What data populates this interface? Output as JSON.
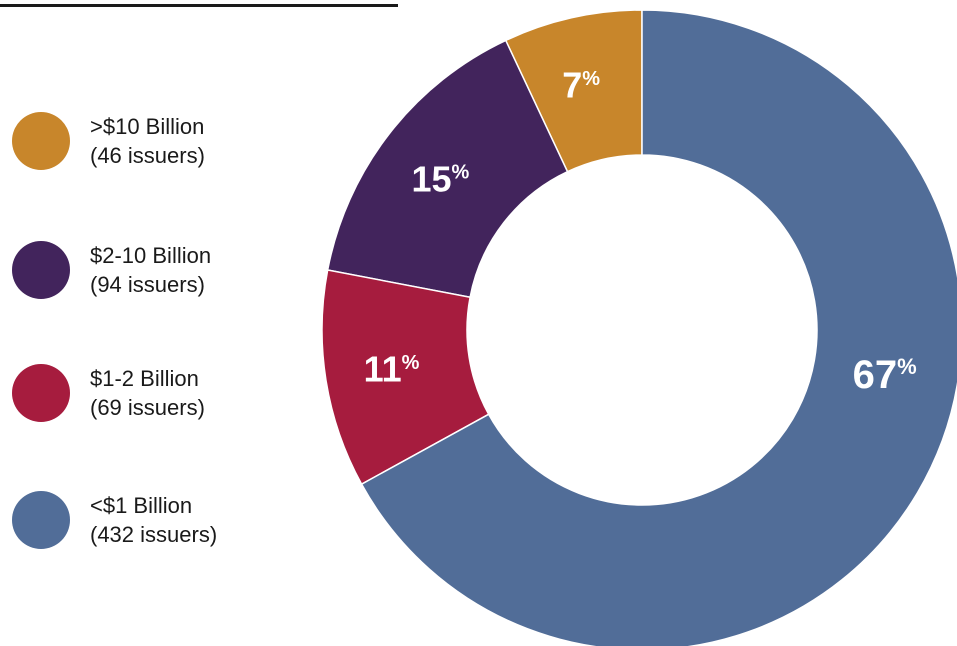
{
  "chart_data": {
    "type": "pie",
    "categories": [
      ">$10 Billion",
      "$2-10 Billion",
      "$1-2 Billion",
      "<$1 Billion"
    ],
    "values": [
      7,
      15,
      11,
      67
    ],
    "value_labels": [
      "7",
      "15",
      "11",
      "67"
    ],
    "percent_symbol": "%",
    "colors": [
      "#c8862b",
      "#42245c",
      "#a61c3e",
      "#516d98"
    ],
    "legend": [
      {
        "label": ">$10 Billion",
        "sublabel": "(46 issuers)",
        "color": "#c8862b"
      },
      {
        "label": "$2-10 Billion",
        "sublabel": "(94 issuers)",
        "color": "#42245c"
      },
      {
        "label": "$1-2 Billion",
        "sublabel": "(69 issuers)",
        "color": "#a61c3e"
      },
      {
        "label": "<$1 Billion",
        "sublabel": "(432 issuers)",
        "color": "#516d98"
      }
    ],
    "legend_position": "left",
    "donut": true
  }
}
